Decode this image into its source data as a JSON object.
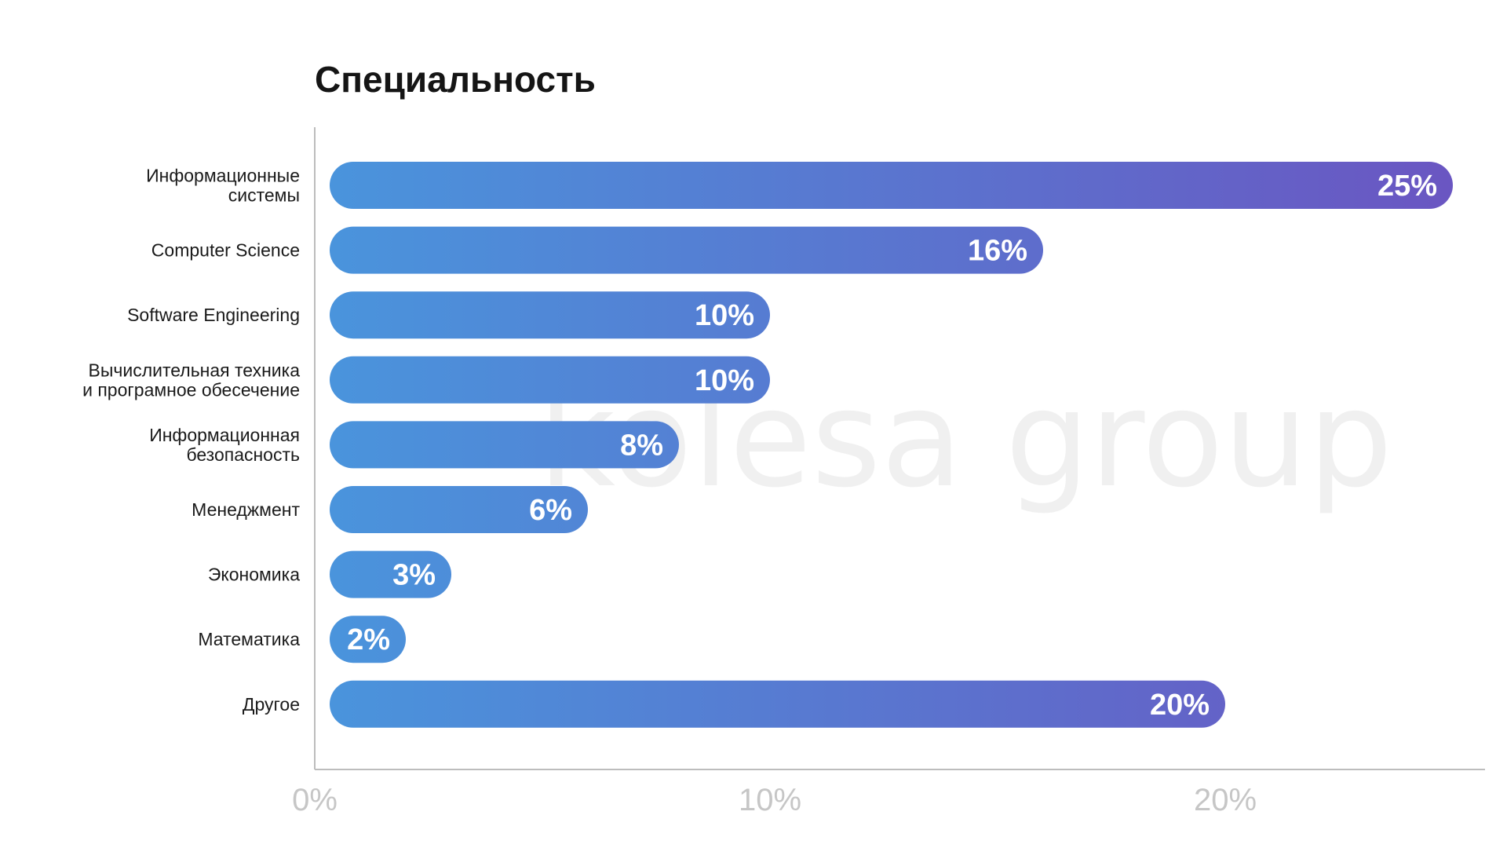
{
  "colors": {
    "bar_start": "#4a94dc",
    "bar_end": "#6a56c2",
    "axis": "#bdbdbd",
    "tick_text": "#c6c6c6",
    "title": "#151515"
  },
  "watermark": "kolesa group",
  "chart_data": {
    "type": "bar",
    "orientation": "horizontal",
    "title": "Специальность",
    "xlabel": "",
    "ylabel": "",
    "xlim": [
      0,
      25.7
    ],
    "grid": false,
    "x_ticks": [
      {
        "value": 0,
        "label": "0%"
      },
      {
        "value": 10,
        "label": "10%"
      },
      {
        "value": 20,
        "label": "20%"
      }
    ],
    "categories": [
      [
        "Информационные",
        "системы"
      ],
      [
        "Computer Science"
      ],
      [
        "Software Engineering"
      ],
      [
        "Вычислительная техника",
        "и програмное обесечение"
      ],
      [
        "Информационная",
        "безопасность"
      ],
      [
        "Менеджмент"
      ],
      [
        "Экономика"
      ],
      [
        "Математика"
      ],
      [
        "Другое"
      ]
    ],
    "values": [
      25,
      16,
      10,
      10,
      8,
      6,
      3,
      2,
      20
    ],
    "value_labels": [
      "25%",
      "16%",
      "10%",
      "10%",
      "8%",
      "6%",
      "3%",
      "2%",
      "20%"
    ]
  }
}
